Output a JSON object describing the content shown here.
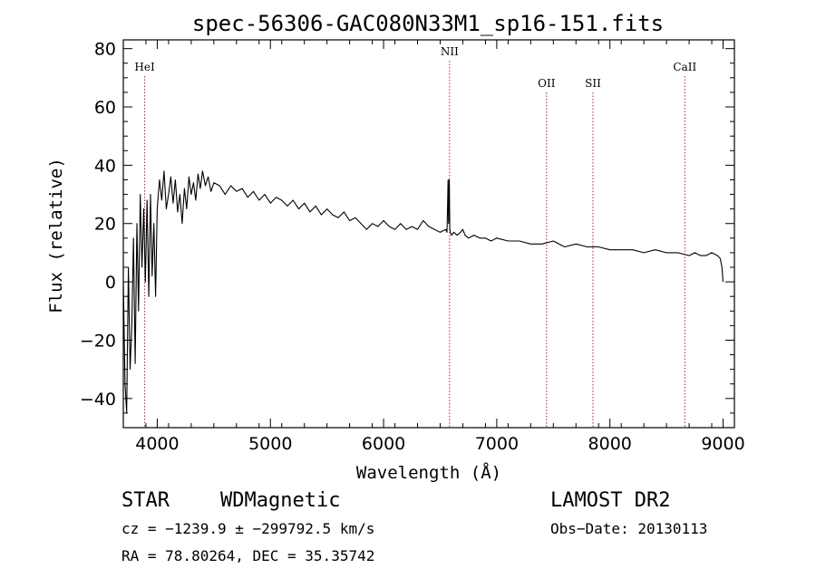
{
  "chart_data": {
    "type": "line",
    "title": "spec-56306-GAC080N33M1_sp16-151.fits",
    "xlabel": "Wavelength (Å)",
    "ylabel": "Flux (relative)",
    "xlim": [
      3700,
      9100
    ],
    "ylim": [
      -50,
      83
    ],
    "x_ticks": [
      4000,
      5000,
      6000,
      7000,
      8000,
      9000
    ],
    "y_ticks": [
      -40,
      -20,
      0,
      20,
      40,
      60,
      80
    ],
    "grid": false,
    "series": [
      {
        "x": [
          3700,
          3715,
          3730,
          3745,
          3760,
          3775,
          3790,
          3805,
          3820,
          3835,
          3850,
          3865,
          3880,
          3895,
          3910,
          3925,
          3940,
          3955,
          3970,
          3985,
          4000,
          4020,
          4040,
          4060,
          4080,
          4100,
          4120,
          4140,
          4160,
          4180,
          4200,
          4220,
          4240,
          4260,
          4280,
          4300,
          4320,
          4340,
          4360,
          4380,
          4400,
          4425,
          4450,
          4475,
          4500,
          4550,
          4600,
          4650,
          4700,
          4750,
          4800,
          4850,
          4900,
          4950,
          5000,
          5050,
          5100,
          5150,
          5200,
          5250,
          5300,
          5350,
          5400,
          5450,
          5500,
          5550,
          5600,
          5650,
          5700,
          5750,
          5800,
          5850,
          5900,
          5950,
          6000,
          6050,
          6100,
          6150,
          6200,
          6250,
          6300,
          6350,
          6400,
          6450,
          6500,
          6550,
          6560,
          6565,
          6570,
          6575,
          6580,
          6585,
          6590,
          6600,
          6620,
          6650,
          6680,
          6700,
          6720,
          6750,
          6800,
          6850,
          6900,
          6950,
          7000,
          7100,
          7200,
          7300,
          7400,
          7500,
          7600,
          7700,
          7800,
          7900,
          8000,
          8100,
          8200,
          8300,
          8400,
          8500,
          8600,
          8700,
          8750,
          8800,
          8850,
          8900,
          8950,
          8975,
          8990,
          9000
        ],
        "y": [
          0,
          -35,
          -45,
          5,
          -30,
          -15,
          15,
          -28,
          20,
          -10,
          30,
          5,
          25,
          0,
          28,
          -5,
          30,
          2,
          20,
          -5,
          25,
          35,
          28,
          38,
          25,
          30,
          36,
          27,
          35,
          24,
          30,
          20,
          32,
          25,
          36,
          30,
          34,
          28,
          37,
          32,
          38,
          33,
          36,
          31,
          34,
          33,
          30,
          33,
          31,
          32,
          29,
          31,
          28,
          30,
          27,
          29,
          28,
          26,
          28,
          25,
          27,
          24,
          26,
          23,
          25,
          23,
          22,
          24,
          21,
          22,
          20,
          18,
          20,
          19,
          21,
          19,
          18,
          20,
          18,
          19,
          18,
          21,
          19,
          18,
          17,
          18,
          17,
          25,
          35,
          20,
          35,
          18,
          17,
          16,
          17,
          16,
          17,
          18,
          16,
          15,
          16,
          15,
          15,
          14,
          15,
          14,
          14,
          13,
          13,
          14,
          12,
          13,
          12,
          12,
          11,
          11,
          11,
          10,
          11,
          10,
          10,
          9,
          10,
          9,
          9,
          10,
          9,
          8,
          5,
          0
        ]
      }
    ],
    "vlines": [
      {
        "label": "HeI",
        "x": 3889,
        "label_level": "high"
      },
      {
        "label": "NII",
        "x": 6583,
        "label_level": "top"
      },
      {
        "label": "OII",
        "x": 7440,
        "label_level": "low"
      },
      {
        "label": "SII",
        "x": 7850,
        "label_level": "low"
      },
      {
        "label": "CaII",
        "x": 8662,
        "label_level": "high"
      }
    ],
    "line_color": "#000000",
    "marker_color": "#b22222"
  },
  "info": {
    "class": "STAR",
    "subclass": "WDMagnetic",
    "survey": "LAMOST DR2",
    "cz": "cz = −1239.9 ± −299792.5 km/s",
    "obs_date": "Obs−Date: 20130113",
    "radec": "RA =  78.80264, DEC =  35.35742"
  }
}
